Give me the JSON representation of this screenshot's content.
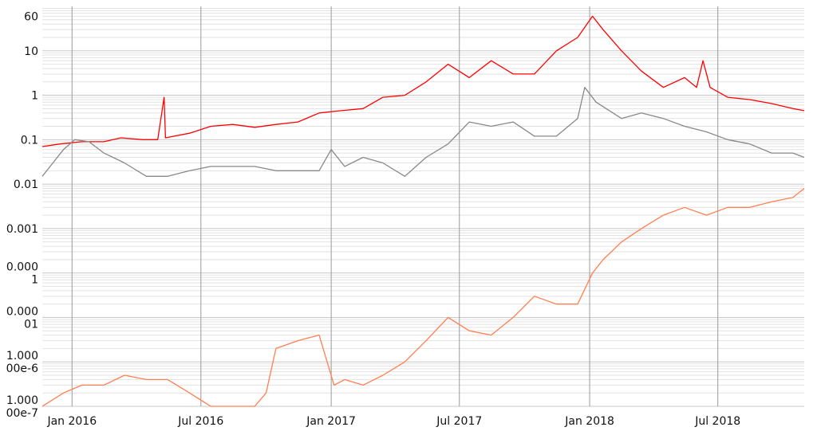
{
  "chart_data": {
    "type": "line",
    "title": "",
    "xlabel": "",
    "ylabel": "",
    "y_scale": "log",
    "x_range": [
      "2015-11-20",
      "2018-10-31"
    ],
    "y_range": [
      1e-07,
      100
    ],
    "grid": {
      "vertical": true,
      "horizontal_minor": true
    },
    "x_ticks": [
      {
        "date": "2016-01-01",
        "label": "Jan 2016"
      },
      {
        "date": "2016-07-01",
        "label": "Jul 2016"
      },
      {
        "date": "2017-01-01",
        "label": "Jan 2017"
      },
      {
        "date": "2017-07-01",
        "label": "Jul 2017"
      },
      {
        "date": "2018-01-01",
        "label": "Jan 2018"
      },
      {
        "date": "2018-07-01",
        "label": "Jul 2018"
      }
    ],
    "y_ticks": [
      {
        "value": 60,
        "lines": [
          "60"
        ]
      },
      {
        "value": 10,
        "lines": [
          "10"
        ]
      },
      {
        "value": 1,
        "lines": [
          "1"
        ]
      },
      {
        "value": 0.1,
        "lines": [
          "0.1"
        ]
      },
      {
        "value": 0.01,
        "lines": [
          "0.01"
        ]
      },
      {
        "value": 0.001,
        "lines": [
          "0.001"
        ]
      },
      {
        "value": 0.0001,
        "lines": [
          "0.000",
          "1"
        ]
      },
      {
        "value": 1e-05,
        "lines": [
          "0.000",
          "01"
        ]
      },
      {
        "value": 1e-06,
        "lines": [
          "1.000",
          "00e-6"
        ]
      },
      {
        "value": 1e-07,
        "lines": [
          "1.000",
          "00e-7"
        ]
      }
    ],
    "series": [
      {
        "color": "#ff0000",
        "points": [
          [
            "2015-11-20",
            0.07
          ],
          [
            "2015-12-15",
            0.08
          ],
          [
            "2016-01-15",
            0.09
          ],
          [
            "2016-02-15",
            0.09
          ],
          [
            "2016-03-10",
            0.11
          ],
          [
            "2016-04-10",
            0.1
          ],
          [
            "2016-05-01",
            0.1
          ],
          [
            "2016-05-10",
            0.9
          ],
          [
            "2016-05-12",
            0.11
          ],
          [
            "2016-06-15",
            0.14
          ],
          [
            "2016-07-15",
            0.2
          ],
          [
            "2016-08-15",
            0.22
          ],
          [
            "2016-09-15",
            0.19
          ],
          [
            "2016-10-15",
            0.22
          ],
          [
            "2016-11-15",
            0.25
          ],
          [
            "2016-12-15",
            0.4
          ],
          [
            "2017-01-15",
            0.45
          ],
          [
            "2017-02-15",
            0.5
          ],
          [
            "2017-03-15",
            0.9
          ],
          [
            "2017-04-15",
            1.0
          ],
          [
            "2017-05-15",
            2.0
          ],
          [
            "2017-06-15",
            5.0
          ],
          [
            "2017-07-15",
            2.5
          ],
          [
            "2017-08-15",
            6.0
          ],
          [
            "2017-09-15",
            3.0
          ],
          [
            "2017-10-15",
            3.0
          ],
          [
            "2017-11-15",
            10.0
          ],
          [
            "2017-12-15",
            20.0
          ],
          [
            "2018-01-05",
            60.0
          ],
          [
            "2018-01-20",
            30.0
          ],
          [
            "2018-02-15",
            10.0
          ],
          [
            "2018-03-15",
            3.5
          ],
          [
            "2018-04-15",
            1.5
          ],
          [
            "2018-05-15",
            2.5
          ],
          [
            "2018-06-01",
            1.5
          ],
          [
            "2018-06-10",
            6.0
          ],
          [
            "2018-06-20",
            1.5
          ],
          [
            "2018-07-15",
            0.9
          ],
          [
            "2018-08-15",
            0.8
          ],
          [
            "2018-09-15",
            0.65
          ],
          [
            "2018-10-15",
            0.5
          ],
          [
            "2018-10-31",
            0.45
          ]
        ]
      },
      {
        "color": "#888888",
        "points": [
          [
            "2015-11-20",
            0.015
          ],
          [
            "2015-12-05",
            0.03
          ],
          [
            "2015-12-20",
            0.06
          ],
          [
            "2016-01-05",
            0.1
          ],
          [
            "2016-01-25",
            0.09
          ],
          [
            "2016-02-15",
            0.05
          ],
          [
            "2016-03-15",
            0.03
          ],
          [
            "2016-04-15",
            0.015
          ],
          [
            "2016-05-15",
            0.015
          ],
          [
            "2016-06-15",
            0.02
          ],
          [
            "2016-07-15",
            0.025
          ],
          [
            "2016-08-15",
            0.025
          ],
          [
            "2016-09-15",
            0.025
          ],
          [
            "2016-10-15",
            0.02
          ],
          [
            "2016-11-15",
            0.02
          ],
          [
            "2016-12-15",
            0.02
          ],
          [
            "2017-01-01",
            0.06
          ],
          [
            "2017-01-20",
            0.025
          ],
          [
            "2017-02-15",
            0.04
          ],
          [
            "2017-03-15",
            0.03
          ],
          [
            "2017-04-15",
            0.015
          ],
          [
            "2017-05-15",
            0.04
          ],
          [
            "2017-06-15",
            0.08
          ],
          [
            "2017-07-15",
            0.25
          ],
          [
            "2017-08-15",
            0.2
          ],
          [
            "2017-09-15",
            0.25
          ],
          [
            "2017-10-15",
            0.12
          ],
          [
            "2017-11-15",
            0.12
          ],
          [
            "2017-12-15",
            0.3
          ],
          [
            "2017-12-25",
            1.5
          ],
          [
            "2018-01-10",
            0.7
          ],
          [
            "2018-02-15",
            0.3
          ],
          [
            "2018-03-15",
            0.4
          ],
          [
            "2018-04-15",
            0.3
          ],
          [
            "2018-05-15",
            0.2
          ],
          [
            "2018-06-15",
            0.15
          ],
          [
            "2018-07-15",
            0.1
          ],
          [
            "2018-08-15",
            0.08
          ],
          [
            "2018-09-15",
            0.05
          ],
          [
            "2018-10-15",
            0.05
          ],
          [
            "2018-10-31",
            0.04
          ]
        ]
      },
      {
        "color": "#ff7f50",
        "points": [
          [
            "2015-11-20",
            1e-07
          ],
          [
            "2015-12-20",
            2e-07
          ],
          [
            "2016-01-15",
            3e-07
          ],
          [
            "2016-02-15",
            3e-07
          ],
          [
            "2016-03-15",
            5e-07
          ],
          [
            "2016-04-15",
            4e-07
          ],
          [
            "2016-05-15",
            4e-07
          ],
          [
            "2016-06-15",
            2e-07
          ],
          [
            "2016-07-15",
            1e-07
          ],
          [
            "2016-08-15",
            1e-07
          ],
          [
            "2016-09-15",
            1e-07
          ],
          [
            "2016-10-01",
            2e-07
          ],
          [
            "2016-10-15",
            2e-06
          ],
          [
            "2016-11-15",
            3e-06
          ],
          [
            "2016-12-15",
            4e-06
          ],
          [
            "2017-01-05",
            3e-07
          ],
          [
            "2017-01-20",
            4e-07
          ],
          [
            "2017-02-15",
            3e-07
          ],
          [
            "2017-03-15",
            5e-07
          ],
          [
            "2017-04-15",
            1e-06
          ],
          [
            "2017-05-15",
            3e-06
          ],
          [
            "2017-06-15",
            1e-05
          ],
          [
            "2017-07-15",
            5e-06
          ],
          [
            "2017-08-15",
            4e-06
          ],
          [
            "2017-09-15",
            1e-05
          ],
          [
            "2017-10-15",
            3e-05
          ],
          [
            "2017-11-15",
            2e-05
          ],
          [
            "2017-12-15",
            2e-05
          ],
          [
            "2018-01-05",
            0.0001
          ],
          [
            "2018-01-20",
            0.0002
          ],
          [
            "2018-02-15",
            0.0005
          ],
          [
            "2018-03-15",
            0.001
          ],
          [
            "2018-04-15",
            0.002
          ],
          [
            "2018-05-15",
            0.003
          ],
          [
            "2018-06-15",
            0.002
          ],
          [
            "2018-07-15",
            0.003
          ],
          [
            "2018-08-15",
            0.003
          ],
          [
            "2018-09-15",
            0.004
          ],
          [
            "2018-10-15",
            0.005
          ],
          [
            "2018-10-31",
            0.008
          ]
        ]
      }
    ]
  }
}
